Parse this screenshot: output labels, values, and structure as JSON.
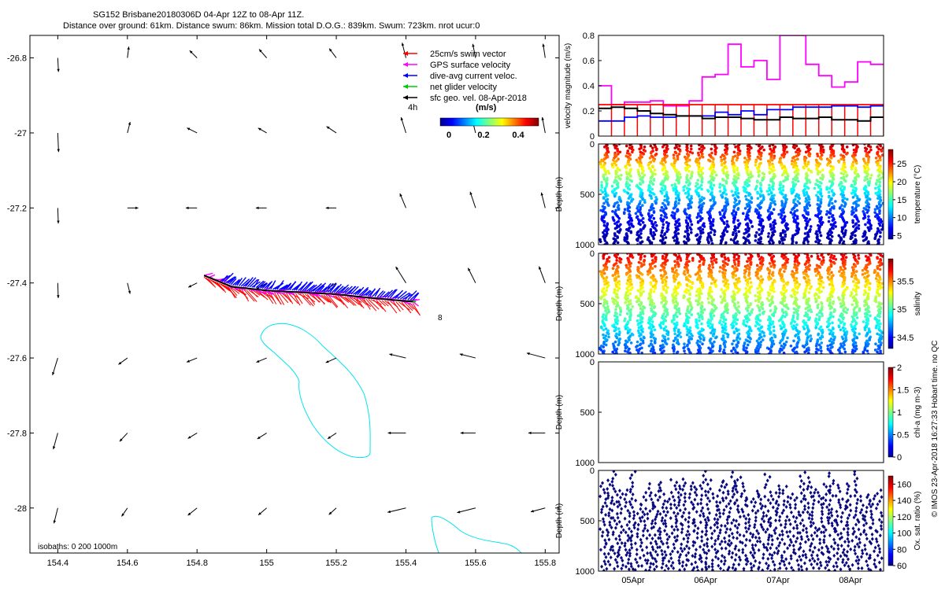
{
  "header": {
    "title_line1": "SG152 Brisbane20180306D 04-Apr 12Z to 08-Apr 11Z.",
    "title_line2": "Distance over ground: 61km. Distance swum: 86km. Mission total D.O.G.: 839km. Swum: 723km. nrot ucur:0"
  },
  "credit": "© IMOS 23-Apr-2018 16:27:33 Hobart time. no QC",
  "chart_data": [
    {
      "type": "scatter",
      "name": "map",
      "x_ticks": [
        "154.4",
        "154.6",
        "154.8",
        "155",
        "155.2",
        "155.4",
        "155.6",
        "155.8"
      ],
      "x_tick_values": [
        154.4,
        154.6,
        154.8,
        155.0,
        155.2,
        155.4,
        155.6,
        155.8
      ],
      "y_ticks": [
        "-26.8",
        "-27",
        "-27.2",
        "-27.4",
        "-27.6",
        "-27.8",
        "-28"
      ],
      "y_tick_values": [
        -26.8,
        -27.0,
        -27.2,
        -27.4,
        -27.6,
        -27.8,
        -28.0
      ],
      "xlim": [
        154.32,
        155.84
      ],
      "ylim": [
        -28.12,
        -26.74
      ],
      "legend": [
        {
          "label": "25cm/s swim vector",
          "color": "#ff0000"
        },
        {
          "label": "GPS surface velocity",
          "color": "#ff00ff"
        },
        {
          "label": "dive-avg current veloc.",
          "color": "#0000ff"
        },
        {
          "label": "net glider velocity",
          "color": "#00cc00"
        },
        {
          "label": "sfc geo. vel. 08-Apr-2018",
          "color": "#000000"
        }
      ],
      "legend_note": "4h",
      "colorbar": {
        "label": "(m/s)",
        "ticks": [
          "0",
          "0.2",
          "0.4"
        ]
      },
      "isobaths_label": "isobaths: 0   200  1000m",
      "end_label": "8",
      "track": [
        [
          154.82,
          -27.38
        ],
        [
          154.9,
          -27.41
        ],
        [
          155.0,
          -27.42
        ],
        [
          155.1,
          -27.425
        ],
        [
          155.2,
          -27.43
        ],
        [
          155.3,
          -27.44
        ],
        [
          155.42,
          -27.45
        ]
      ],
      "geo_grid_lon": [
        154.4,
        154.6,
        154.8,
        155.0,
        155.2,
        155.4,
        155.6,
        155.8
      ],
      "geo_grid_lat": [
        -26.8,
        -27.0,
        -27.2,
        -27.4,
        -27.6,
        -27.8,
        -28.0
      ]
    },
    {
      "type": "line",
      "name": "velocity",
      "ylabel": "velocity magnitude (m/s)",
      "ylim": [
        0,
        0.8
      ],
      "y_ticks": [
        "0",
        "0.2",
        "0.4",
        "0.6",
        "0.8"
      ],
      "series": [
        {
          "name": "GPS surface velocity",
          "color": "#ff00ff",
          "values": [
            0.4,
            0.25,
            0.27,
            0.27,
            0.28,
            0.24,
            0.24,
            0.28,
            0.47,
            0.49,
            0.73,
            0.55,
            0.6,
            0.45,
            0.8,
            0.8,
            0.57,
            0.48,
            0.39,
            0.43,
            0.59,
            0.57
          ]
        },
        {
          "name": "25cm/s swim vector",
          "color": "#ff0000",
          "values": [
            0.25,
            0.25,
            0.25,
            0.25,
            0.25,
            0.25,
            0.25,
            0.25,
            0.25,
            0.25,
            0.25,
            0.25,
            0.25,
            0.25,
            0.25,
            0.25,
            0.25,
            0.25,
            0.25,
            0.25,
            0.25,
            0.25
          ]
        },
        {
          "name": "dive-avg current veloc.",
          "color": "#0000ff",
          "values": [
            0.12,
            0.12,
            0.15,
            0.16,
            0.15,
            0.15,
            0.16,
            0.16,
            0.16,
            0.19,
            0.17,
            0.2,
            0.17,
            0.21,
            0.21,
            0.23,
            0.23,
            0.23,
            0.24,
            0.24,
            0.23,
            0.24
          ]
        },
        {
          "name": "net glider velocity",
          "color": "#000000",
          "values": [
            0.22,
            0.23,
            0.22,
            0.2,
            0.18,
            0.17,
            0.16,
            0.16,
            0.14,
            0.15,
            0.15,
            0.14,
            0.13,
            0.13,
            0.15,
            0.14,
            0.14,
            0.15,
            0.13,
            0.13,
            0.12,
            0.15
          ]
        }
      ]
    },
    {
      "type": "scatter",
      "name": "temperature",
      "ylabel": "Depth (m)",
      "y_ticks": [
        "0",
        "500",
        "1000"
      ],
      "ylim": [
        0,
        1000
      ],
      "colorbar": {
        "label": "temperature (°C)",
        "ticks": [
          "5",
          "10",
          "15",
          "20",
          "25"
        ],
        "range": [
          4,
          29
        ]
      }
    },
    {
      "type": "scatter",
      "name": "salinity",
      "ylabel": "Depth (m)",
      "y_ticks": [
        "0",
        "500",
        "1000"
      ],
      "ylim": [
        0,
        1000
      ],
      "colorbar": {
        "label": "salinity",
        "ticks": [
          "34.5",
          "35",
          "35.5"
        ],
        "range": [
          34.3,
          35.9
        ]
      }
    },
    {
      "type": "scatter",
      "name": "chl",
      "ylabel": "Depth (m)",
      "y_ticks": [
        "0",
        "500",
        "1000"
      ],
      "ylim": [
        0,
        1000
      ],
      "colorbar": {
        "label": "chl-a (mg m-3)",
        "ticks": [
          "0",
          "0.5",
          "1",
          "1.5",
          "2"
        ],
        "range": [
          0,
          2
        ]
      }
    },
    {
      "type": "scatter",
      "name": "oxygen",
      "ylabel": "Depth (m)",
      "y_ticks": [
        "0",
        "500",
        "1000"
      ],
      "ylim": [
        0,
        1000
      ],
      "x_ticks": [
        "05Apr",
        "06Apr",
        "07Apr",
        "08Apr"
      ],
      "colorbar": {
        "label": "Ox. sat. ratio (%)",
        "ticks": [
          "60",
          "80",
          "100",
          "120",
          "140",
          "160"
        ],
        "range": [
          60,
          170
        ]
      }
    }
  ]
}
